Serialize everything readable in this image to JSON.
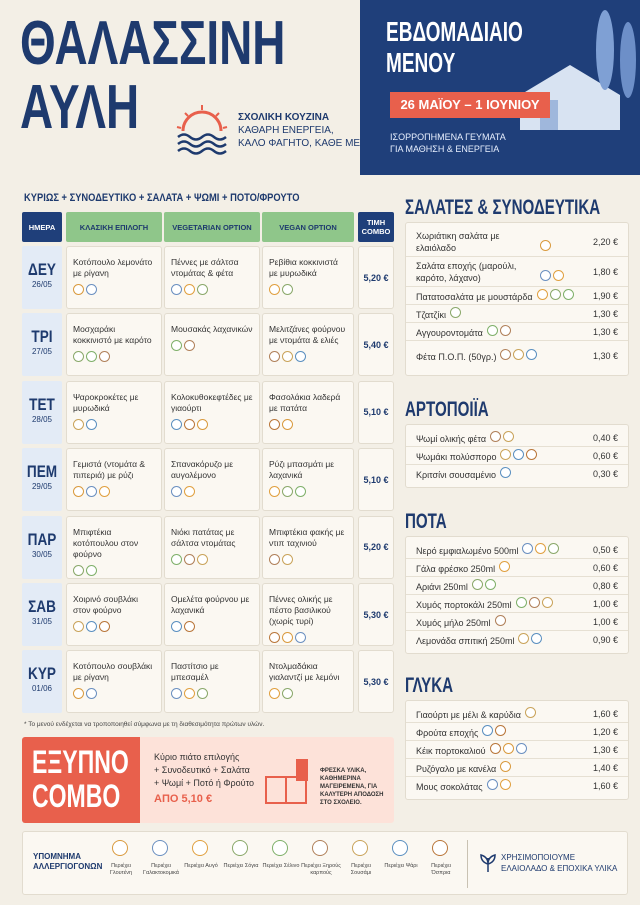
{
  "header": {
    "title": [
      "ΘΑΛΑΣΣΙΝΗ",
      "ΑΥΛΗ"
    ],
    "brand": "ΣΧΟΛΙΚΗ ΚΟΥΖΙΝΑ",
    "tagline": [
      "ΚΑΘΑΡΗ ΕΝΕΡΓΕΙΑ,",
      "ΚΑΛΟ ΦΑΓΗΤΟ, ΚΑΘΕ ΜΕΡΑ."
    ],
    "menu_title": [
      "ΕΒΔΟΜΑΔΙΑΙΟ",
      "ΜΕΝΟΥ"
    ],
    "dates": "26 ΜΑΪΟΥ – 1 ΙΟΥΝΙΟΥ",
    "subtitle": [
      "ΙΣΟΡΡΟΠΗΜΕΝΑ ΓΕΥΜΑΤΑ",
      "ΓΙΑ ΜΑΘΗΣΗ & ΕΝΕΡΓΕΙΑ"
    ]
  },
  "formula": "ΚΥΡΙΩΣ + ΣΥΝΟΔΕΥΤΙΚΟ + ΣΑΛΑΤΑ + ΨΩΜΙ + ΠΟΤΟ/ΦΡΟΥΤΟ",
  "table": {
    "headers": [
      "ΗΜΕΡΑ",
      "ΚΛΑΣΙΚΗ ΕΠΙΛΟΓΗ",
      "VEGETARIAN OPTION",
      "VEGAN OPTION",
      "ΤΙΜΗ COMBO"
    ],
    "rows": [
      {
        "day": "ΔΕΥ",
        "date": "26/05",
        "classic": "Κοτόπουλο λεμονάτο με ρίγανη",
        "vegetarian": "Πέννες με σάλτσα ντομάτας & φέτα",
        "vegan": "Ρεβίθια κοκκινιστά με μυρωδικά",
        "price": "5,20 €"
      },
      {
        "day": "ΤΡΙ",
        "date": "27/05",
        "classic": "Μοσχαράκι κοκκινιστό με καρότο",
        "vegetarian": "Μουσακάς λαχανικών",
        "vegan": "Μελιτζάνες φούρνου με ντομάτα & ελιές",
        "price": "5,40 €"
      },
      {
        "day": "ΤΕΤ",
        "date": "28/05",
        "classic": "Ψαροκροκέτες με μυρωδικά",
        "vegetarian": "Κολοκυθοκεφτέδες με γιαούρτι",
        "vegan": "Φασολάκια λαδερά με πατάτα",
        "price": "5,10 €"
      },
      {
        "day": "ΠΕΜ",
        "date": "29/05",
        "classic": "Γεμιστά (ντομάτα & πιπεριά) με ρύζι",
        "vegetarian": "Σπανακόρυζο με αυγολέμονο",
        "vegan": "Ρύζι μπασμάτι με λαχανικά",
        "price": "5,10 €"
      },
      {
        "day": "ΠΑΡ",
        "date": "30/05",
        "classic": "Μπιφτέκια κοτόπουλου στον φούρνο",
        "vegetarian": "Νιόκι πατάτας με σάλτσα ντομάτας",
        "vegan": "Μπιφτέκια φακής με ντιπ ταχινιού",
        "price": "5,20 €"
      },
      {
        "day": "ΣΑΒ",
        "date": "31/05",
        "classic": "Χοιρινό σουβλάκι στον φούρνο",
        "vegetarian": "Ομελέτα φούρνου με λαχανικά",
        "vegan": "Πέννες ολικής με πέστο βασιλικού (χωρίς τυρί)",
        "price": "5,30 €"
      },
      {
        "day": "ΚΥΡ",
        "date": "01/06",
        "classic": "Κοτόπουλο σουβλάκι με ρίγανη",
        "vegetarian": "Παστίτσιο με μπεσαμέλ",
        "vegan": "Ντολμαδάκια γιαλαντζί με λεμόνι",
        "price": "5,30 €"
      }
    ]
  },
  "footnote": "* Το μενού ενδέχεται να τροποποιηθεί σύμφωνα με τη διαθεσιμότητα πρώτων υλών.",
  "combo": {
    "title": [
      "ΕΞΥΠΝΟ",
      "COMBO"
    ],
    "lines": [
      "Κύριο πιάτο επιλογής",
      "+ Συνοδευτικό + Σαλάτα",
      "+ Ψωμί + Ποτό ή Φρούτο"
    ],
    "price": "ΑΠΟ 5,10 €",
    "note": "ΦΡΕΣΚΑ ΥΛΙΚΑ, ΚΑΘΗΜΕΡΙΝΑ ΜΑΓΕΙΡΕΜΕΝΑ, ΓΙΑ ΚΑΛΥΤΕΡΗ ΑΠΟΔΟΣΗ ΣΤΟ ΣΧΟΛΕΙΟ."
  },
  "sections": [
    {
      "title": "ΣΑΛΑΤΕΣ & ΣΥΝΟΔΕΥΤΙΚΑ",
      "items": [
        {
          "name": "Χωριάτικη σαλάτα με ελαιόλαδο",
          "price": "2,20 €"
        },
        {
          "name": "Σαλάτα εποχής (μαρούλι, καρότο, λάχανο)",
          "price": "1,80 €"
        },
        {
          "name": "Πατατοσαλάτα με μουστάρδα",
          "price": "1,90 €"
        },
        {
          "name": "Τζατζίκι",
          "price": "1,30 €"
        },
        {
          "name": "Αγγουροντομάτα",
          "price": "1,30 €"
        },
        {
          "name": "Φέτα Π.Ο.Π. (50γρ.)",
          "price": "1,30 €"
        }
      ]
    },
    {
      "title": "ΑΡΤΟΠΟΙΪΑ",
      "items": [
        {
          "name": "Ψωμί ολικής φέτα",
          "price": "0,40 €"
        },
        {
          "name": "Ψωμάκι πολύσπορο",
          "price": "0,60 €"
        },
        {
          "name": "Κριτσίνι σουσαμένιο",
          "price": "0,30 €"
        }
      ]
    },
    {
      "title": "ΠΟΤΑ",
      "items": [
        {
          "name": "Νερό εμφιαλωμένο 500ml",
          "price": "0,50 €"
        },
        {
          "name": "Γάλα φρέσκο 250ml",
          "price": "0,60 €"
        },
        {
          "name": "Αριάνι 250ml",
          "price": "0,80 €"
        },
        {
          "name": "Χυμός πορτοκάλι 250ml",
          "price": "1,00 €"
        },
        {
          "name": "Χυμός μήλο 250ml",
          "price": "1,00 €"
        },
        {
          "name": "Λεμονάδα σπιτική 250ml",
          "price": "0,90 €"
        }
      ]
    },
    {
      "title": "ΓΛΥΚΑ",
      "items": [
        {
          "name": "Γιαούρτι με μέλι & καρύδια",
          "price": "1,60 €"
        },
        {
          "name": "Φρούτα εποχής",
          "price": "1,20 €"
        },
        {
          "name": "Κέικ πορτοκαλιού",
          "price": "1,30 €"
        },
        {
          "name": "Ρυζόγαλο με κανέλα",
          "price": "1,40 €"
        },
        {
          "name": "Μους σοκολάτας",
          "price": "1,60 €"
        }
      ]
    }
  ],
  "legend": {
    "title": "ΥΠΟΜΝΗΜΑ ΑΛΛΕΡΓΙΟΓΟΝΩΝ",
    "items": [
      "Περιέχει Γλουτένη",
      "Περιέχει Γαλακτοκομικά",
      "Περιέχει Αυγό",
      "Περιέχει Σόγια",
      "Περιέχει Σέλινο",
      "Περιέχει Ξηρούς καρπούς",
      "Περιέχει Σουσάμι",
      "Περιέχει Ψάρι",
      "Περιέχει Όσπρια"
    ],
    "note": "ΧΡΗΣΙΜΟΠΟΙΟΥΜΕ ΕΛΑΙΟΛΑΔΟ & ΕΠΟΧΙΚΑ ΥΛΙΚΑ"
  }
}
